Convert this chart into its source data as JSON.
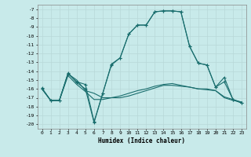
{
  "xlabel": "Humidex (Indice chaleur)",
  "bg_color": "#c8eaea",
  "grid_color": "#b8d8d8",
  "line_color": "#1a6e6e",
  "xlim": [
    -0.5,
    23.5
  ],
  "ylim": [
    -20.5,
    -6.5
  ],
  "xticks": [
    0,
    1,
    2,
    3,
    4,
    5,
    6,
    7,
    8,
    9,
    10,
    11,
    12,
    13,
    14,
    15,
    16,
    17,
    18,
    19,
    20,
    21,
    22,
    23
  ],
  "yticks": [
    -7,
    -8,
    -9,
    -10,
    -11,
    -12,
    -13,
    -14,
    -15,
    -16,
    -17,
    -18,
    -19,
    -20
  ],
  "line1_x": [
    0,
    1,
    2,
    3,
    4,
    5,
    6,
    7,
    8,
    9,
    10,
    11,
    12,
    13,
    14,
    15,
    16,
    17,
    18,
    19,
    20,
    21,
    22,
    23
  ],
  "line1_y": [
    -16,
    -17.3,
    -17.3,
    -14.3,
    -15.2,
    -15.5,
    -19.7,
    -16.5,
    -13.2,
    -12.5,
    -9.8,
    -8.8,
    -8.8,
    -7.3,
    -7.2,
    -7.2,
    -7.3,
    -11.2,
    -13.1,
    -13.3,
    -15.8,
    -15.2,
    -17.2,
    -17.6
  ],
  "line2_x": [
    0,
    1,
    2,
    3,
    4,
    5,
    6,
    7,
    8,
    9,
    10,
    11,
    12,
    13,
    14,
    15,
    16,
    17,
    18,
    19,
    20,
    21,
    22,
    23
  ],
  "line2_y": [
    -16,
    -17.3,
    -17.3,
    -14.3,
    -15.0,
    -16.2,
    -16.5,
    -17.0,
    -17.0,
    -17.0,
    -16.8,
    -16.5,
    -16.2,
    -15.9,
    -15.6,
    -15.6,
    -15.7,
    -15.8,
    -16.0,
    -16.0,
    -16.2,
    -17.0,
    -17.3,
    -17.5
  ],
  "line3_x": [
    0,
    1,
    2,
    3,
    4,
    5,
    6,
    7,
    8,
    9,
    10,
    11,
    12,
    13,
    14,
    15,
    16,
    17,
    18,
    19,
    20,
    21,
    22,
    23
  ],
  "line3_y": [
    -16,
    -17.3,
    -17.3,
    -14.5,
    -15.5,
    -16.3,
    -17.2,
    -17.2,
    -17.0,
    -16.8,
    -16.5,
    -16.2,
    -16.0,
    -15.7,
    -15.5,
    -15.4,
    -15.6,
    -15.8,
    -16.0,
    -16.1,
    -16.2,
    -16.9,
    -17.2,
    -17.5
  ],
  "line4_x": [
    0,
    1,
    2,
    3,
    4,
    5,
    6,
    7,
    8,
    9,
    10,
    11,
    12,
    13,
    14,
    15,
    16,
    17,
    18,
    19,
    20,
    21,
    22,
    23
  ],
  "line4_y": [
    -15.9,
    -17.3,
    -17.3,
    -14.2,
    -15.3,
    -16.0,
    -19.8,
    -16.5,
    -13.3,
    -12.5,
    -9.8,
    -8.8,
    -8.8,
    -7.3,
    -7.2,
    -7.2,
    -7.3,
    -11.2,
    -13.1,
    -13.3,
    -15.8,
    -14.7,
    -17.2,
    -17.6
  ]
}
